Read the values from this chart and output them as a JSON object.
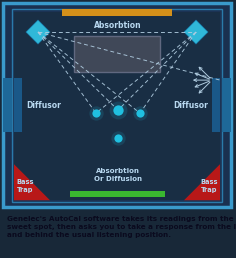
{
  "bg_outer": "#182838",
  "bg_border": "#3a9acc",
  "bg_inner": "#1a3050",
  "bg_room": "#1c3354",
  "caption_bg": "#4a9ec8",
  "caption_text": "Genelec's AutoCal software takes its readings from the optimum\nsweet spot, then asks you to take a response from the left, right\nand behind the usual listening position.",
  "caption_color": "#0a0a1e",
  "caption_fontsize": 5.2,
  "absorption_bar_color": "#d4901a",
  "absorption_text": "Absorbtion",
  "diffusion_bar_color": "#3ab830",
  "bottom_text": "Absorbtion\nOr Diffusion",
  "diffusor_left_text": "Diffusor",
  "diffusor_right_text": "Diffusor",
  "bass_trap_left_text": "Bass\nTrap",
  "bass_trap_right_text": "Bass\nTrap",
  "label_color": "#b8d8f0",
  "speaker_color": "#30b8d8",
  "speaker_dark": "#1878a8",
  "mic_color": "#20c0e0",
  "screen_color": "#404858",
  "screen_border": "#606880",
  "dashed_color": "#b0cce0",
  "arrow_color": "#b0cce0",
  "bass_trap_color": "#b81818",
  "diffusor_panel_color": "#1a5888",
  "side_panel_color": "#1e6898",
  "room_inner_bg": "#192e44"
}
